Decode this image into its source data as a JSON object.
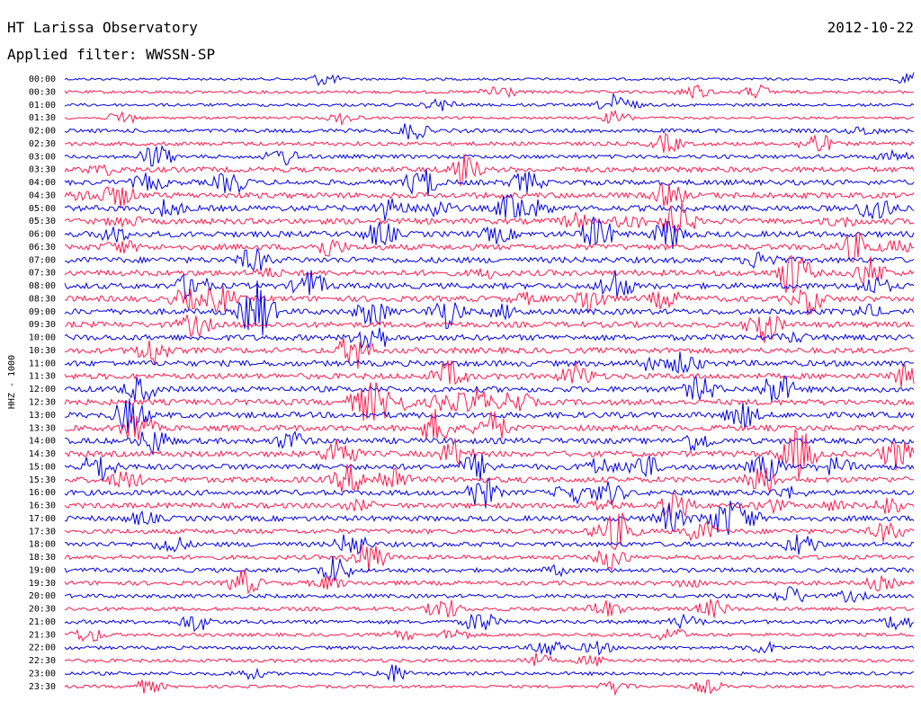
{
  "header": {
    "station": "HT Larissa Observatory",
    "date": "2012-10-22",
    "filter_label": "Applied filter: WWSSN-SP"
  },
  "colors": {
    "trace_a": "#0000e6",
    "trace_b": "#ff1a4d",
    "text": "#000000",
    "background": "#ffffff"
  },
  "chart_data": {
    "type": "line",
    "title": "HT Larissa Observatory",
    "subtitle": "Applied filter: WWSSN-SP",
    "ylabel": "HHZ - 1000",
    "xlabel": "",
    "grid": false,
    "legend": "none",
    "row_minutes": 30,
    "row_labels": [
      "00:00",
      "00:30",
      "01:00",
      "01:30",
      "02:00",
      "02:30",
      "03:00",
      "03:30",
      "04:00",
      "04:30",
      "05:00",
      "05:30",
      "06:00",
      "06:30",
      "07:00",
      "07:30",
      "08:00",
      "08:30",
      "09:00",
      "09:30",
      "10:00",
      "10:30",
      "11:00",
      "11:30",
      "12:00",
      "12:30",
      "13:00",
      "13:30",
      "14:00",
      "14:30",
      "15:00",
      "15:30",
      "16:00",
      "16:30",
      "17:00",
      "17:30",
      "18:00",
      "18:30",
      "19:00",
      "19:30",
      "20:00",
      "20:30",
      "21:00",
      "21:30",
      "22:00",
      "22:30",
      "23:00",
      "23:30"
    ],
    "row_activity": [
      0.3,
      0.4,
      0.4,
      0.3,
      0.6,
      0.6,
      0.6,
      0.9,
      0.9,
      1.0,
      1.0,
      1.0,
      1.0,
      1.0,
      1.0,
      1.0,
      1.0,
      1.0,
      1.0,
      1.0,
      1.0,
      1.0,
      1.0,
      1.0,
      1.0,
      1.0,
      1.0,
      1.0,
      1.0,
      1.0,
      1.0,
      1.0,
      0.9,
      0.9,
      0.9,
      0.8,
      0.8,
      0.7,
      0.7,
      0.7,
      0.6,
      0.6,
      0.6,
      0.5,
      0.5,
      0.5,
      0.5,
      0.4
    ]
  }
}
